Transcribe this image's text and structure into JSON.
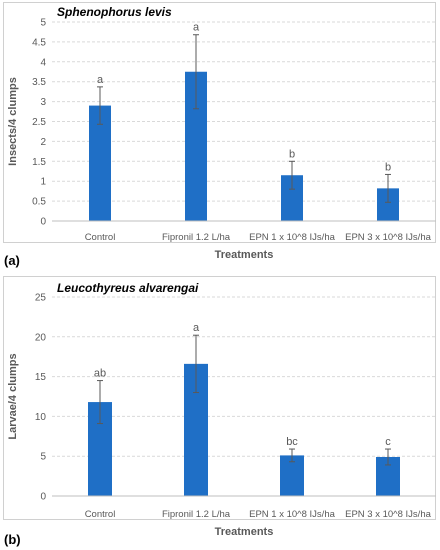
{
  "chart_data": [
    {
      "type": "bar",
      "panel_label": "(a)",
      "title": "Sphenophorus levis",
      "xlabel": "Treatments",
      "ylabel": "Insects/4 clumps",
      "ylim": [
        0,
        5
      ],
      "yticks": [
        0,
        0.5,
        1,
        1.5,
        2,
        2.5,
        3,
        3.5,
        4,
        4.5,
        5
      ],
      "ytick_labels": [
        "0",
        "0.5",
        "1",
        "1.5",
        "2",
        "2.5",
        "3",
        "3.5",
        "4",
        "4.5",
        "5"
      ],
      "grid": true,
      "categories": [
        "Control",
        "Fipronil 1.2 L/ha",
        "EPN 1 x 10^8 IJs/ha",
        "EPN 3 x 10^8 IJs/ha"
      ],
      "values": [
        2.9,
        3.75,
        1.15,
        0.82
      ],
      "errors": [
        0.47,
        0.93,
        0.35,
        0.35
      ],
      "significance": [
        "a",
        "a",
        "b",
        "b"
      ],
      "color": "#1f6fc6"
    },
    {
      "type": "bar",
      "panel_label": "(b)",
      "title": "Leucothyreus alvarengai",
      "xlabel": "Treatments",
      "ylabel": "Larvae/4 clumps",
      "ylim": [
        0,
        25
      ],
      "yticks": [
        0,
        5,
        10,
        15,
        20,
        25
      ],
      "ytick_labels": [
        "0",
        "5",
        "10",
        "15",
        "20",
        "25"
      ],
      "grid": true,
      "categories": [
        "Control",
        "Fipronil 1.2 L/ha",
        "EPN 1 x 10^8 IJs/ha",
        "EPN 3 x 10^8 IJs/ha"
      ],
      "values": [
        11.8,
        16.6,
        5.1,
        4.9
      ],
      "errors": [
        2.7,
        3.6,
        0.8,
        1.0
      ],
      "significance": [
        "ab",
        "a",
        "bc",
        "c"
      ],
      "color": "#1f6fc6"
    }
  ]
}
